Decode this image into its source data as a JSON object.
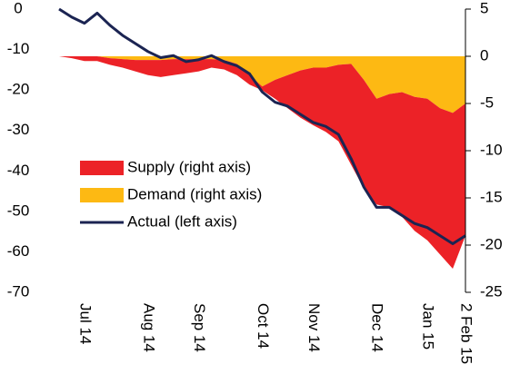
{
  "chart_data": {
    "type": "area",
    "categories": [
      null,
      null,
      "Jul 14",
      null,
      null,
      null,
      null,
      "Aug 14",
      null,
      null,
      null,
      "Sep 14",
      null,
      null,
      null,
      null,
      "Oct 14",
      null,
      null,
      null,
      "Nov 14",
      null,
      null,
      null,
      null,
      "Dec 14",
      null,
      null,
      null,
      "Jan 15",
      null,
      null,
      "2 Feb 15"
    ],
    "ylim": [
      -70,
      0
    ],
    "yticks": [
      0,
      -10,
      -20,
      -30,
      -40,
      -50,
      -60,
      -70
    ],
    "y2lim": [
      -25,
      5
    ],
    "y2ticks": [
      5,
      0,
      -5,
      -10,
      -15,
      -20,
      -25
    ],
    "series": [
      {
        "name": "Supply (right axis)",
        "type": "area",
        "axis": "y2",
        "color": "#ec2227",
        "values": [
          0,
          -0.2,
          -0.5,
          -0.5,
          -0.7,
          -0.9,
          -1.2,
          -1.6,
          -1.8,
          -1.7,
          -1.5,
          -1.3,
          -0.9,
          -1,
          -1.2,
          -1,
          -0.4,
          -2,
          -3.5,
          -5,
          -6.1,
          -6.8,
          -8.1,
          -10.7,
          -11.5,
          -11.2,
          -12,
          -13.2,
          -14.2,
          -15,
          -15.5,
          -16.5,
          -14
        ]
      },
      {
        "name": "Demand (right axis)",
        "type": "area",
        "axis": "y2",
        "color": "#fdb913",
        "values": [
          0,
          0,
          0,
          0,
          -0.2,
          -0.3,
          -0.4,
          -0.4,
          -0.4,
          -0.3,
          -0.3,
          -0.3,
          -0.3,
          -0.4,
          -0.8,
          -2,
          -3.2,
          -2.5,
          -2,
          -1.5,
          -1.2,
          -1.2,
          -0.9,
          -0.8,
          -2.5,
          -4.5,
          -4,
          -3.8,
          -4.3,
          -4.5,
          -5.5,
          -6,
          -5
        ]
      },
      {
        "name": "Actual (left axis)",
        "type": "line",
        "axis": "y",
        "color": "#1b2452",
        "values": [
          0,
          -2,
          -3.5,
          -1,
          -4,
          -6.5,
          -8.5,
          -10.5,
          -12,
          -11.5,
          -13,
          -12.5,
          -11.5,
          -13,
          -14,
          -16,
          -20.5,
          -23,
          -24,
          -26,
          -28,
          -29,
          -31,
          -37,
          -44,
          -49,
          -49,
          -51,
          -53,
          -54,
          -56,
          -58,
          -56
        ]
      }
    ]
  }
}
